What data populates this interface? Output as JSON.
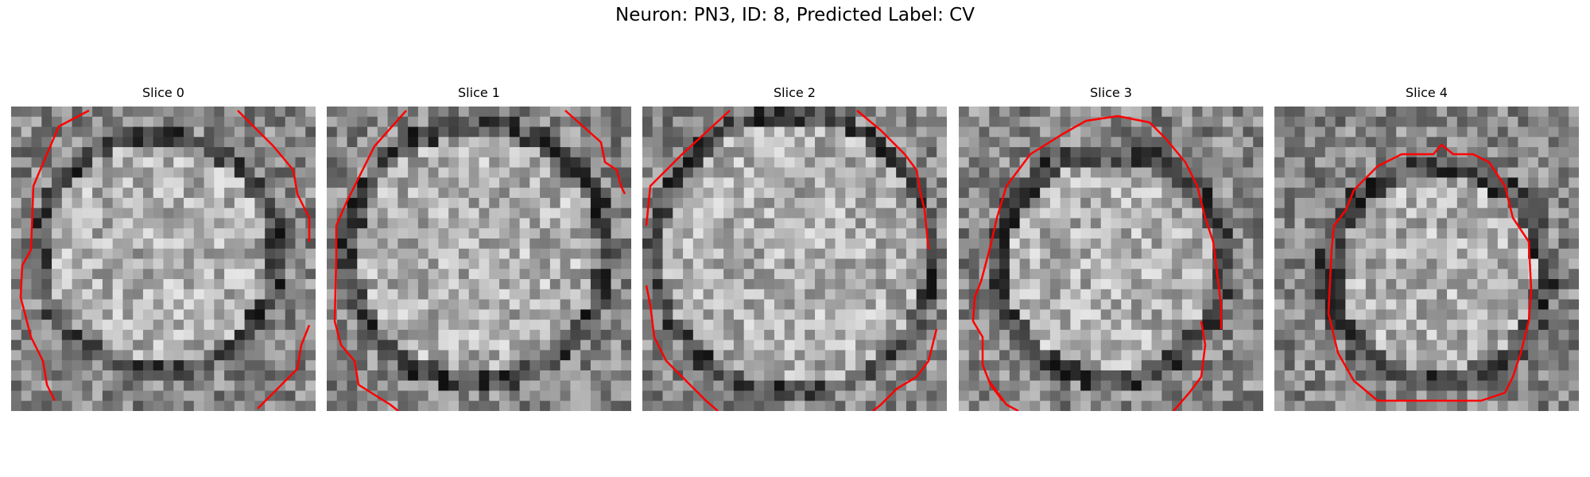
{
  "figure": {
    "title": "Neuron: PN3, ID: 8, Predicted Label: CV",
    "contour_color": "#ff0000",
    "colormap": "gray"
  },
  "panels": [
    {
      "title": "Slice 0"
    },
    {
      "title": "Slice 1"
    },
    {
      "title": "Slice 2"
    },
    {
      "title": "Slice 3"
    },
    {
      "title": "Slice 4"
    }
  ]
}
